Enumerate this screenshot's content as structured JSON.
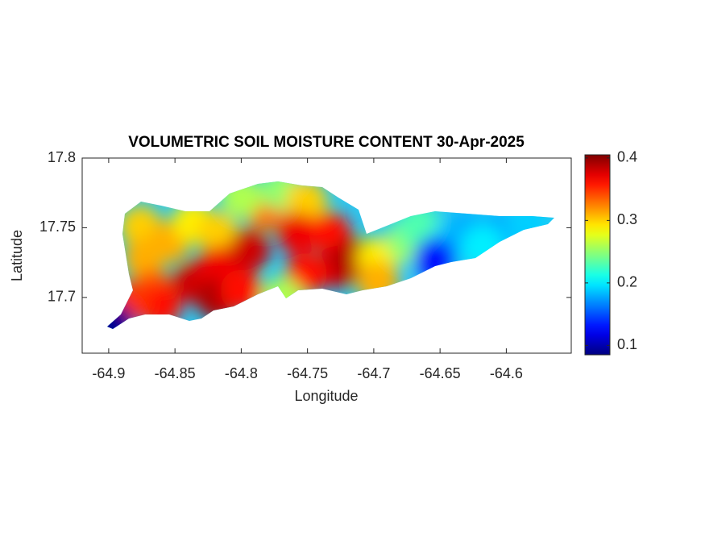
{
  "chart_data": {
    "type": "map",
    "title": "VOLUMETRIC SOIL MOISTURE CONTENT 30-Apr-2025",
    "x_label": "Longitude",
    "y_label": "Latitude",
    "xlim": [
      -64.92,
      -64.551
    ],
    "ylim": [
      17.66,
      17.8
    ],
    "xticks": [
      -64.9,
      -64.85,
      -64.8,
      -64.75,
      -64.7,
      -64.65,
      -64.6
    ],
    "yticks": [
      17.7,
      17.75,
      17.8
    ],
    "clim": [
      0.085,
      0.405
    ],
    "cticks": [
      0.1,
      0.2,
      0.3,
      0.4
    ],
    "colormap": "jet",
    "x": [
      -64.876,
      -64.854,
      -64.873,
      -64.836,
      -64.818,
      -64.867,
      -64.861,
      -64.885,
      -64.836,
      -64.818,
      -64.818,
      -64.794,
      -64.8,
      -64.782,
      -64.8,
      -64.769,
      -64.751,
      -64.757,
      -64.733,
      -64.727,
      -64.751,
      -64.715,
      -64.697,
      -64.697,
      -64.675,
      -64.666,
      -64.642,
      -64.63,
      -64.605,
      -64.584,
      -64.654,
      -64.897,
      -64.769,
      -64.618
    ],
    "y": [
      17.751,
      17.74,
      17.728,
      17.754,
      17.746,
      17.705,
      17.694,
      17.696,
      17.711,
      17.722,
      17.699,
      17.734,
      17.705,
      17.763,
      17.772,
      17.777,
      17.769,
      17.746,
      17.746,
      17.722,
      17.717,
      17.728,
      17.728,
      17.711,
      17.74,
      17.751,
      17.74,
      17.748,
      17.748,
      17.752,
      17.728,
      17.682,
      17.699,
      17.737
    ],
    "values": [
      0.3,
      0.31,
      0.31,
      0.29,
      0.3,
      0.34,
      0.36,
      0.35,
      0.38,
      0.37,
      0.39,
      0.38,
      0.36,
      0.33,
      0.26,
      0.25,
      0.3,
      0.37,
      0.36,
      0.38,
      0.36,
      0.39,
      0.29,
      0.31,
      0.25,
      0.23,
      0.19,
      0.18,
      0.18,
      0.19,
      0.13,
      0.09,
      0.26,
      0.2
    ]
  }
}
